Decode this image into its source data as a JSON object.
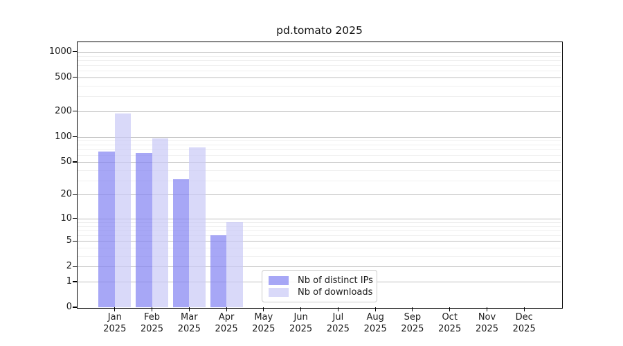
{
  "title": "pd.tomato 2025",
  "chart_data": {
    "type": "bar",
    "title": "pd.tomato 2025",
    "x_year": "2025",
    "categories": [
      "Jan",
      "Feb",
      "Mar",
      "Apr",
      "May",
      "Jun",
      "Jul",
      "Aug",
      "Sep",
      "Oct",
      "Nov",
      "Dec"
    ],
    "series": [
      {
        "name": "Nb of distinct IPs",
        "color": "rgba(130,130,242,0.7)",
        "values": [
          67,
          64,
          31,
          6,
          null,
          null,
          null,
          null,
          null,
          null,
          null,
          null
        ]
      },
      {
        "name": "Nb of downloads",
        "color": "rgba(201,201,246,0.7)",
        "values": [
          187,
          95,
          74,
          9,
          null,
          null,
          null,
          null,
          null,
          null,
          null,
          null
        ]
      }
    ],
    "y_axis": {
      "scale": "log10(1+value)",
      "major_ticks": [
        0,
        1,
        2,
        5,
        10,
        20,
        50,
        100,
        200,
        500,
        1000
      ],
      "minor_ticks": [
        3,
        4,
        6,
        7,
        8,
        9,
        30,
        40,
        60,
        70,
        80,
        90,
        300,
        400,
        600,
        700,
        800,
        900
      ],
      "ylim": [
        0,
        1300
      ]
    },
    "legend": {
      "position": "lower-center",
      "items": [
        "Nb of distinct IPs",
        "Nb of downloads"
      ]
    },
    "grid": true
  },
  "colors": {
    "background": "#ffffff",
    "spine": "#000000",
    "major_grid": "#bdbdbd",
    "minor_grid": "#efefef",
    "bar_distinct_ips": "rgba(130,130,242,0.7)",
    "bar_downloads": "rgba(201,201,246,0.7)",
    "text": "#1a1a1a"
  }
}
